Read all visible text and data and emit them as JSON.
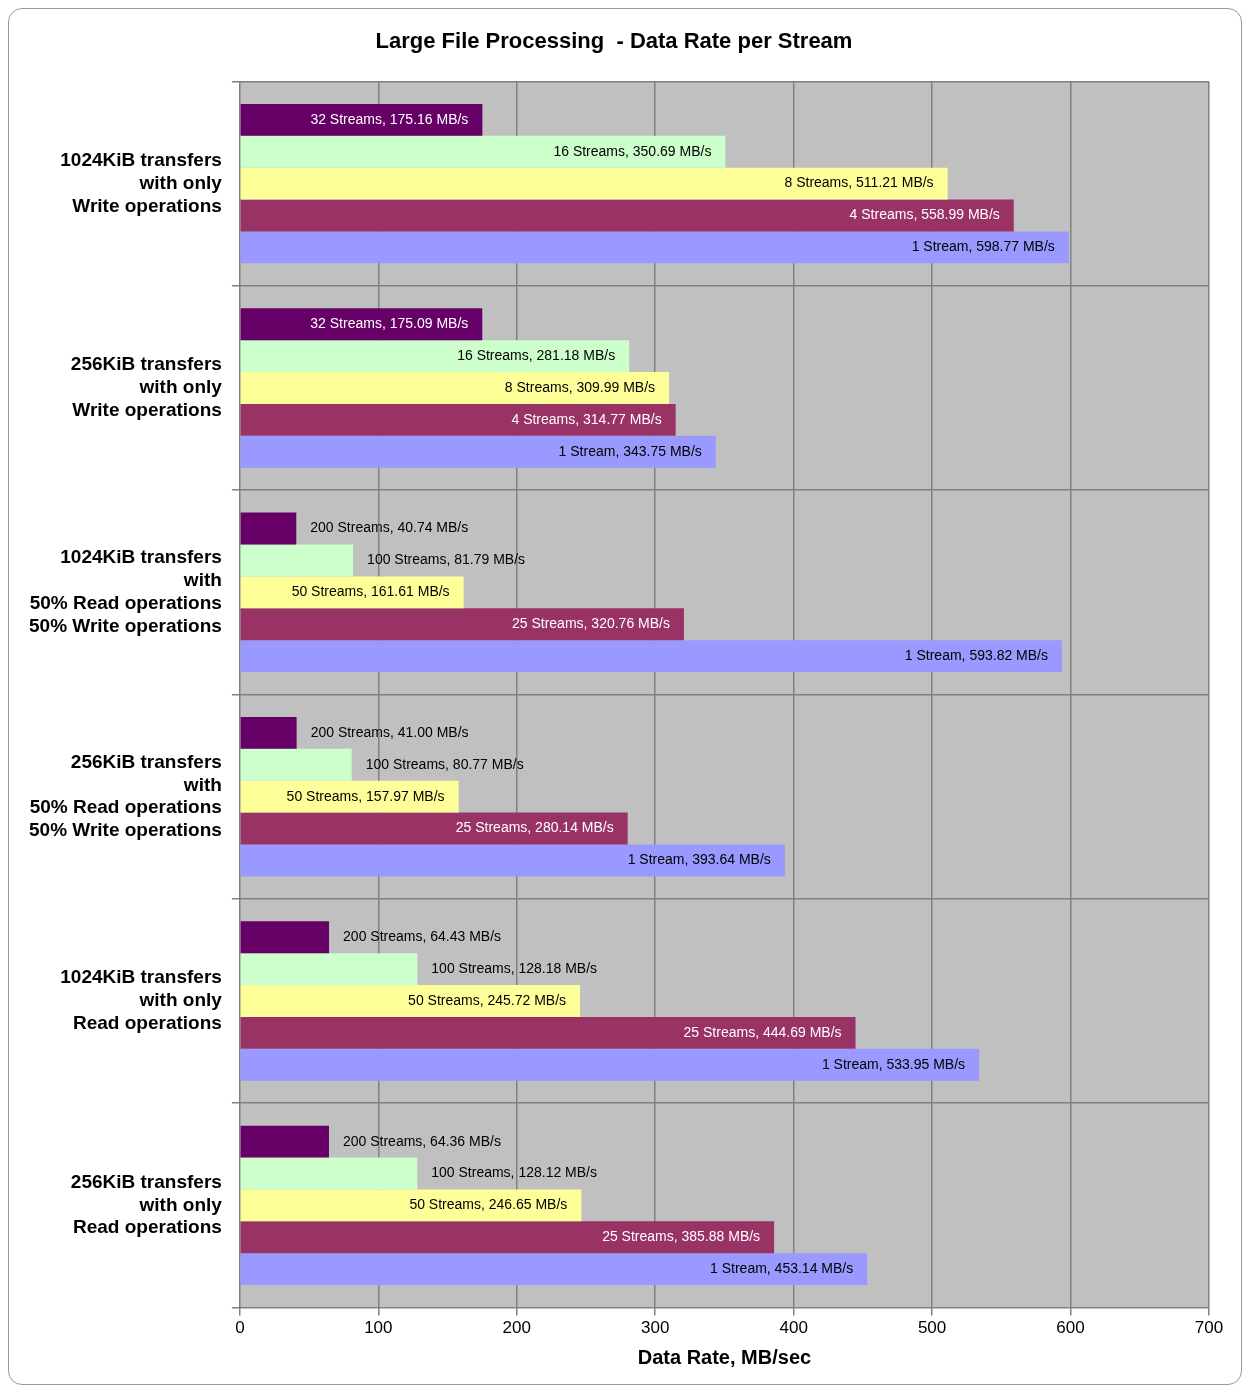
{
  "chart_data": {
    "type": "bar",
    "orientation": "horizontal",
    "title": "Large File Processing  - Data Rate per Stream",
    "xlabel": "Data Rate, MB/sec",
    "categories": [
      "1024KiB transfers\nwith only\nWrite operations",
      "256KiB transfers\nwith only\nWrite operations",
      "1024KiB transfers\nwith\n50% Read operations\n50% Write operations",
      "256KiB transfers\nwith\n50% Read operations\n50% Write operations",
      "1024KiB transfers\nwith only\nRead operations",
      "256KiB transfers\nwith only\nRead operations"
    ],
    "series": [
      {
        "color": "#660066",
        "values": [
          175.16,
          175.09,
          40.74,
          41.0,
          64.43,
          64.36
        ],
        "value_labels": [
          "32 Streams, 175.16 MB/s",
          "32 Streams, 175.09 MB/s",
          "200 Streams, 40.74 MB/s",
          "200 Streams, 41.00 MB/s",
          "200 Streams, 64.43 MB/s",
          "200 Streams, 64.36 MB/s"
        ]
      },
      {
        "color": "#ccffcc",
        "values": [
          350.69,
          281.18,
          81.79,
          80.77,
          128.18,
          128.12
        ],
        "value_labels": [
          "16 Streams, 350.69 MB/s",
          "16 Streams, 281.18 MB/s",
          "100 Streams, 81.79 MB/s",
          "100 Streams, 80.77 MB/s",
          "100 Streams, 128.18 MB/s",
          "100 Streams, 128.12 MB/s"
        ]
      },
      {
        "color": "#ffff99",
        "values": [
          511.21,
          309.99,
          161.61,
          157.97,
          245.72,
          246.65
        ],
        "value_labels": [
          "8 Streams, 511.21 MB/s",
          "8 Streams, 309.99 MB/s",
          "50 Streams, 161.61 MB/s",
          "50 Streams, 157.97 MB/s",
          "50 Streams, 245.72 MB/s",
          "50 Streams, 246.65 MB/s"
        ]
      },
      {
        "color": "#993366",
        "values": [
          558.99,
          314.77,
          320.76,
          280.14,
          444.69,
          385.88
        ],
        "value_labels": [
          "4 Streams, 558.99 MB/s",
          "4 Streams, 314.77 MB/s",
          "25 Streams, 320.76 MB/s",
          "25 Streams, 280.14 MB/s",
          "25 Streams, 444.69 MB/s",
          "25 Streams, 385.88 MB/s"
        ]
      },
      {
        "color": "#9999ff",
        "values": [
          598.77,
          343.75,
          593.82,
          393.64,
          533.95,
          453.14
        ],
        "value_labels": [
          "1 Stream, 598.77 MB/s",
          "1 Stream, 343.75 MB/s",
          "1 Stream, 593.82 MB/s",
          "1 Stream, 393.64 MB/s",
          "1 Stream, 533.95 MB/s",
          "1 Stream, 453.14 MB/s"
        ]
      }
    ],
    "xlim": [
      0,
      700
    ],
    "xticks": [
      0,
      100,
      200,
      300,
      400,
      500,
      600,
      700
    ],
    "grid": true,
    "legend": false
  }
}
